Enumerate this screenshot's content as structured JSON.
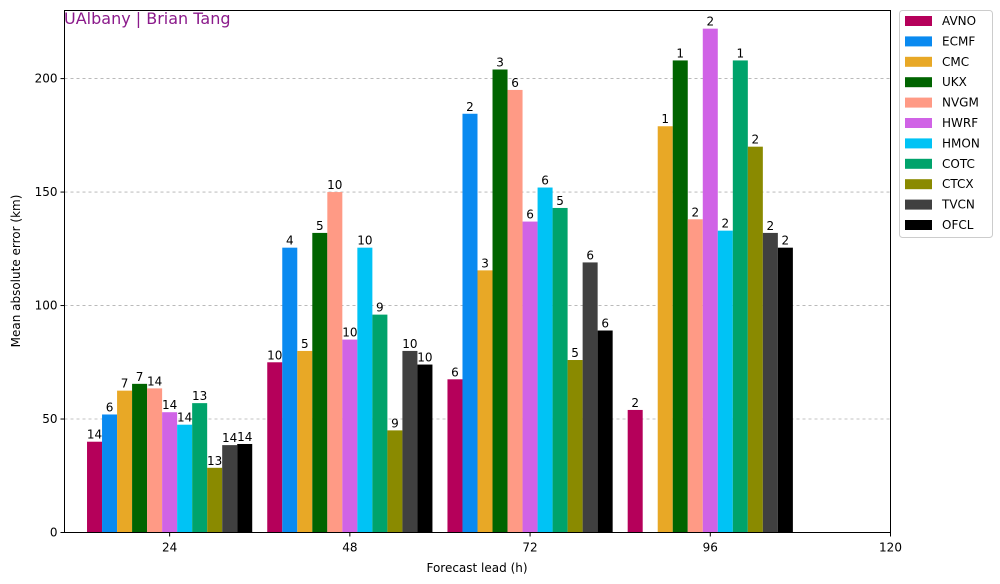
{
  "chart_data": {
    "type": "bar",
    "watermark": "UAlbany | Brian Tang",
    "xlabel": "Forecast lead (h)",
    "ylabel": "Mean absolute error (km)",
    "x_ticks": [
      "24",
      "48",
      "72",
      "96",
      "120"
    ],
    "y_ticks": [
      "0",
      "50",
      "100",
      "150",
      "200"
    ],
    "ylim": [
      0,
      230
    ],
    "grid": "horizontal dashed",
    "legend_position": "outside-right",
    "categories": [
      24,
      48,
      72,
      96
    ],
    "series": [
      {
        "name": "AVNO",
        "color": "#B5005A",
        "values": [
          40,
          75,
          67.5,
          54
        ],
        "counts": [
          "14",
          "10",
          "6",
          "2"
        ]
      },
      {
        "name": "ECMF",
        "color": "#0A8AF0",
        "values": [
          52,
          125.5,
          184.5,
          null
        ],
        "counts": [
          "6",
          "4",
          "2",
          ""
        ]
      },
      {
        "name": "CMC",
        "color": "#E8A826",
        "values": [
          62.5,
          80,
          115.5,
          179
        ],
        "counts": [
          "7",
          "5",
          "3",
          "1"
        ]
      },
      {
        "name": "UKX",
        "color": "#006400",
        "values": [
          65.5,
          132,
          204,
          208
        ],
        "counts": [
          "7",
          "5",
          "3",
          "1"
        ]
      },
      {
        "name": "NVGM",
        "color": "#FF9A85",
        "values": [
          63.5,
          150,
          195,
          138
        ],
        "counts": [
          "14",
          "10",
          "6",
          "2"
        ]
      },
      {
        "name": "HWRF",
        "color": "#D063E6",
        "values": [
          53,
          85,
          137,
          222
        ],
        "counts": [
          "14",
          "10",
          "6",
          "2"
        ]
      },
      {
        "name": "HMON",
        "color": "#00C3F5",
        "values": [
          47.5,
          125.5,
          152,
          133
        ],
        "counts": [
          "14",
          "10",
          "6",
          "2"
        ]
      },
      {
        "name": "COTC",
        "color": "#00A36B",
        "values": [
          57,
          96,
          143,
          208
        ],
        "counts": [
          "13",
          "9",
          "5",
          "1"
        ]
      },
      {
        "name": "CTCX",
        "color": "#8A8A00",
        "values": [
          28.5,
          45,
          76,
          170
        ],
        "counts": [
          "13",
          "9",
          "5",
          "2"
        ]
      },
      {
        "name": "TVCN",
        "color": "#404040",
        "values": [
          38.5,
          80,
          119,
          132
        ],
        "counts": [
          "14",
          "10",
          "6",
          "2"
        ]
      },
      {
        "name": "OFCL",
        "color": "#000000",
        "values": [
          39,
          74,
          89,
          125.5
        ],
        "counts": [
          "14",
          "10",
          "6",
          "2"
        ]
      }
    ]
  }
}
